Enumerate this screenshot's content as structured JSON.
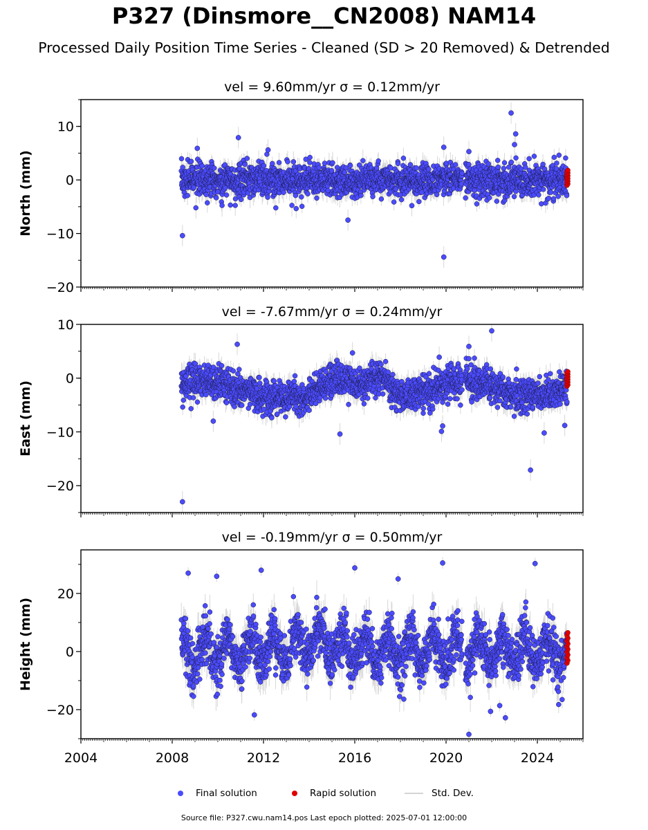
{
  "title": "P327 (Dinsmore__CN2008) NAM14",
  "subtitle": "Processed Daily Position Time Series - Cleaned (SD > 20 Removed) & Detrended",
  "footer": "Source file: P327.cwu.nam14.pos  Last epoch plotted: 2025-07-01 12:00:00",
  "legend": {
    "final": "Final solution",
    "rapid": "Rapid solution",
    "std": "Std. Dev."
  },
  "colors": {
    "final": "#4b4bff",
    "rapid": "#e00000",
    "std": "#bdbdbd"
  },
  "chart_data": [
    {
      "type": "scatter",
      "title": "vel = 9.60mm/yr   σ = 0.12mm/yr",
      "ylabel": "North (mm)",
      "xlim": [
        2004,
        2026
      ],
      "ylim": [
        -20,
        15
      ],
      "yticks": [
        -20,
        -10,
        0,
        10
      ],
      "ytick_labels": [
        "−20",
        "−10",
        "0",
        "10"
      ],
      "data_start": 2008.4,
      "data_end": 2025.3,
      "gap": [
        2020.7,
        2020.85
      ],
      "band_halfwidth": 2.8,
      "outliers": [
        {
          "x": 2008.45,
          "y": -10.4
        },
        {
          "x": 2010.9,
          "y": 7.9
        },
        {
          "x": 2015.7,
          "y": -7.5
        },
        {
          "x": 2019.9,
          "y": -14.4
        },
        {
          "x": 2019.9,
          "y": 6.1
        },
        {
          "x": 2022.85,
          "y": 12.5
        },
        {
          "x": 2023.05,
          "y": 8.6
        },
        {
          "x": 2023.0,
          "y": 6.6
        },
        {
          "x": 2021.0,
          "y": 5.3
        },
        {
          "x": 2009.1,
          "y": 5.9
        },
        {
          "x": 2012.2,
          "y": 5.6
        },
        {
          "x": 2018.5,
          "y": -4.8
        }
      ],
      "rapid_x": 2025.3,
      "rapid_range": [
        -1.0,
        1.8
      ]
    },
    {
      "type": "scatter",
      "title": "vel = -7.67mm/yr   σ = 0.24mm/yr",
      "ylabel": "East (mm)",
      "xlim": [
        2004,
        2026
      ],
      "ylim": [
        -25,
        10
      ],
      "yticks": [
        -20,
        -10,
        0,
        10
      ],
      "ytick_labels": [
        "−20",
        "−10",
        "0",
        "10"
      ],
      "data_start": 2008.4,
      "data_end": 2025.3,
      "gap": [
        2020.7,
        2020.85
      ],
      "band_halfwidth": 2.8,
      "outliers": [
        {
          "x": 2008.45,
          "y": -23.0
        },
        {
          "x": 2010.85,
          "y": 6.3
        },
        {
          "x": 2015.35,
          "y": -10.4
        },
        {
          "x": 2019.8,
          "y": -9.9
        },
        {
          "x": 2019.85,
          "y": -8.9
        },
        {
          "x": 2019.7,
          "y": 3.9
        },
        {
          "x": 2021.0,
          "y": 5.9
        },
        {
          "x": 2022.0,
          "y": 8.8
        },
        {
          "x": 2023.7,
          "y": -17.1
        },
        {
          "x": 2024.3,
          "y": -10.2
        },
        {
          "x": 2025.2,
          "y": -8.8
        },
        {
          "x": 2015.9,
          "y": 4.7
        },
        {
          "x": 2009.8,
          "y": -8.0
        }
      ],
      "rapid_x": 2025.3,
      "rapid_range": [
        -1.5,
        1.2
      ]
    },
    {
      "type": "scatter",
      "title": "vel = -0.19mm/yr   σ = 0.50mm/yr",
      "ylabel": "Height (mm)",
      "xlim": [
        2004,
        2026
      ],
      "ylim": [
        -30,
        35
      ],
      "yticks": [
        -20,
        0,
        20
      ],
      "ytick_labels": [
        "−20",
        "0",
        "20"
      ],
      "xticks": [
        2004,
        2008,
        2012,
        2016,
        2020,
        2024
      ],
      "data_start": 2008.4,
      "data_end": 2025.3,
      "gap": [
        2020.7,
        2020.85
      ],
      "band_halfwidth": 8.0,
      "outliers": [
        {
          "x": 2008.7,
          "y": 27.0
        },
        {
          "x": 2011.9,
          "y": 28.0
        },
        {
          "x": 2016.0,
          "y": 28.8
        },
        {
          "x": 2019.85,
          "y": 30.5
        },
        {
          "x": 2023.9,
          "y": 30.3
        },
        {
          "x": 2021.0,
          "y": -28.5
        },
        {
          "x": 2022.6,
          "y": -22.8
        },
        {
          "x": 2021.95,
          "y": -20.6
        },
        {
          "x": 2022.35,
          "y": -18.6
        },
        {
          "x": 2011.6,
          "y": -21.8
        },
        {
          "x": 2017.9,
          "y": 25.0
        },
        {
          "x": 2009.95,
          "y": 25.9
        }
      ],
      "rapid_x": 2025.3,
      "rapid_range": [
        -4.0,
        6.5
      ]
    }
  ]
}
